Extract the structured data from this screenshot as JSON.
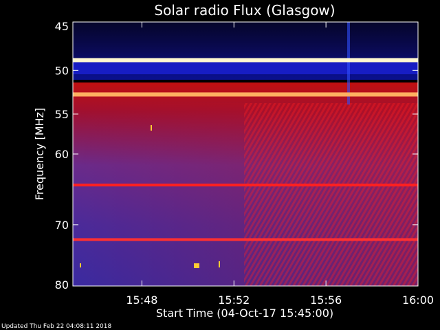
{
  "chart_data": {
    "type": "heatmap",
    "title": "Solar radio Flux (Glasgow)",
    "ylabel": "Frequency [MHz]",
    "xlabel": "Start Time (04-Oct-17 15:45:00)",
    "ylim": [
      45,
      80
    ],
    "y_inverted": true,
    "y_scale": "log",
    "y_ticks": [
      "45",
      "50",
      "55",
      "60",
      "70",
      "80"
    ],
    "x_ticks": [
      "15:48",
      "15:52",
      "15:56",
      "16:00"
    ],
    "xlim": [
      "15:45",
      "16:00"
    ],
    "colormap": "black-blue-red-white",
    "bright_bands_mhz": [
      48.9,
      52.7,
      64.2,
      72.3
    ],
    "note_text": "Updated Thu Feb 22 04:08:11 2018"
  },
  "colors": {
    "background": "#000000",
    "low": "#000033",
    "mid_blue": "#1a1aff",
    "purple": "#5a2a9a",
    "red": "#e01010",
    "hot": "#ffffcc"
  }
}
